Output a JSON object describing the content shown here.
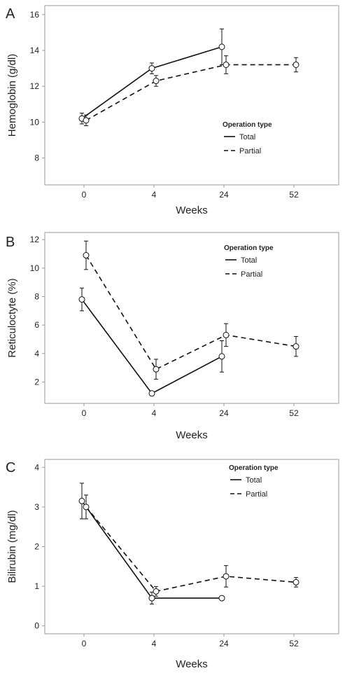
{
  "chart_data": [
    {
      "type": "line",
      "panel_label": "A",
      "xlabel": "Weeks",
      "ylabel": "Hemoglobin (g/dl)",
      "categories": [
        "0",
        "4",
        "24",
        "52"
      ],
      "ylim": [
        6.5,
        16.5
      ],
      "yticks": [
        8,
        10,
        12,
        14,
        16
      ],
      "grid": false,
      "legend": {
        "title": "Operation type",
        "position": "right-middle",
        "items": [
          "Total",
          "Partial"
        ]
      },
      "series": [
        {
          "name": "Total",
          "style": "solid",
          "values": [
            10.2,
            13.0,
            14.2,
            null
          ],
          "errors": [
            0.3,
            0.3,
            1.0,
            null
          ]
        },
        {
          "name": "Partial",
          "style": "dashed",
          "values": [
            10.1,
            12.3,
            13.2,
            13.2
          ],
          "errors": [
            0.3,
            0.3,
            0.5,
            0.4
          ]
        }
      ]
    },
    {
      "type": "line",
      "panel_label": "B",
      "xlabel": "Weeks",
      "ylabel": "Reticuloctyte (%)",
      "categories": [
        "0",
        "4",
        "24",
        "52"
      ],
      "ylim": [
        0.5,
        12.5
      ],
      "yticks": [
        2,
        4,
        6,
        8,
        10,
        12
      ],
      "grid": false,
      "legend": {
        "title": "Operation type",
        "position": "top-right",
        "items": [
          "Total",
          "Partial"
        ]
      },
      "series": [
        {
          "name": "Total",
          "style": "solid",
          "values": [
            7.8,
            1.2,
            3.8,
            null
          ],
          "errors": [
            0.8,
            0.1,
            1.1,
            null
          ]
        },
        {
          "name": "Partial",
          "style": "dashed",
          "values": [
            10.9,
            2.9,
            5.3,
            4.5
          ],
          "errors": [
            1.0,
            0.7,
            0.8,
            0.7
          ]
        }
      ]
    },
    {
      "type": "line",
      "panel_label": "C",
      "xlabel": "Weeks",
      "ylabel": "Bilirubin (mg/dl)",
      "categories": [
        "0",
        "4",
        "24",
        "52"
      ],
      "ylim": [
        -0.2,
        4.2
      ],
      "yticks": [
        0,
        1,
        2,
        3,
        4
      ],
      "grid": false,
      "legend": {
        "title": "Operation type",
        "position": "top-right",
        "items": [
          "Total",
          "Partial"
        ]
      },
      "series": [
        {
          "name": "Total",
          "style": "solid",
          "values": [
            3.15,
            0.7,
            0.7,
            null
          ],
          "errors": [
            0.45,
            0.15,
            0.02,
            null
          ]
        },
        {
          "name": "Partial",
          "style": "dashed",
          "values": [
            3.0,
            0.87,
            1.25,
            1.1
          ],
          "errors": [
            0.3,
            0.12,
            0.27,
            0.12
          ]
        }
      ]
    }
  ]
}
